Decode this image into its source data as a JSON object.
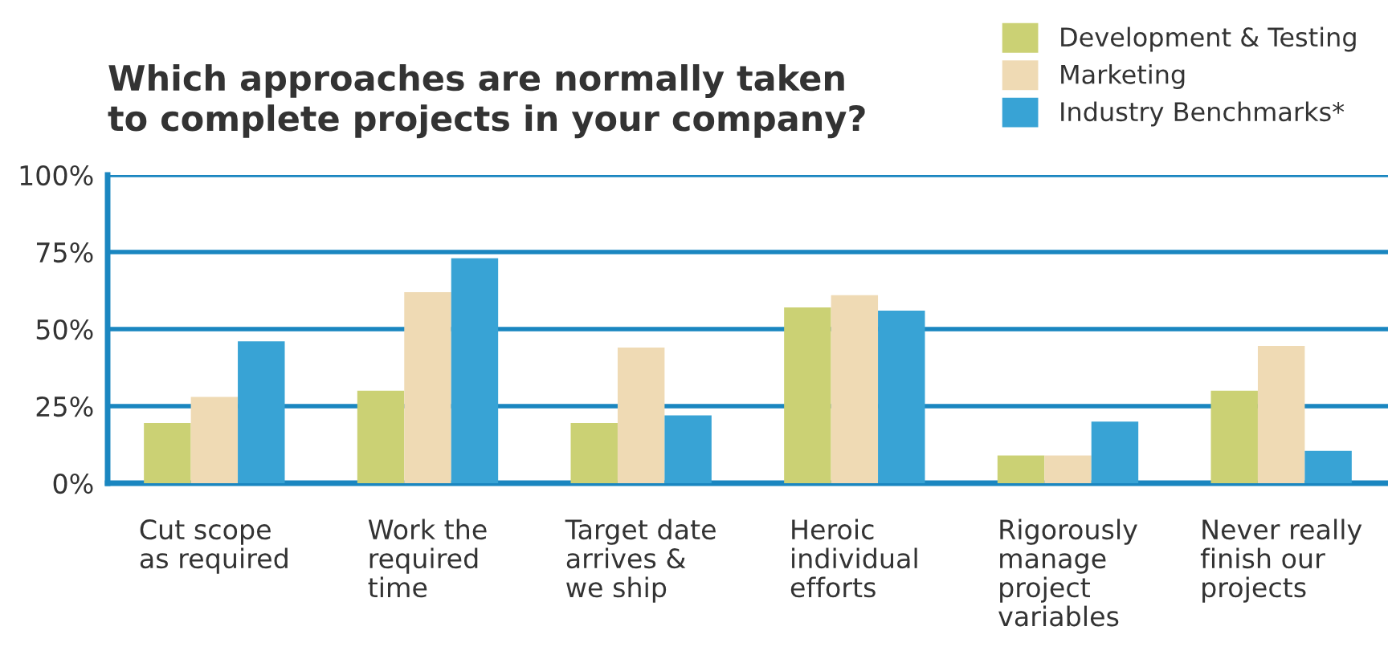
{
  "chart_data": {
    "type": "bar",
    "title": "Which approaches are normally taken\nto complete projects in your company?",
    "categories": [
      "Cut scope\nas required",
      "Work the\nrequired\ntime",
      "Target date\narrives &\nwe ship",
      "Heroic\nindividual\nefforts",
      "Rigorously\nmanage\nproject\nvariables",
      "Never really\nfinish our\nprojects"
    ],
    "series": [
      {
        "name": "Development & Testing",
        "color": "#cbd174",
        "values": [
          19.5,
          30,
          19.5,
          57,
          9,
          30
        ]
      },
      {
        "name": "Marketing",
        "color": "#efdab4",
        "values": [
          28,
          62,
          44,
          61,
          9,
          44.5
        ]
      },
      {
        "name": "Industry Benchmarks*",
        "color": "#38a3d5",
        "values": [
          46,
          73,
          22,
          56,
          20,
          10.5
        ]
      }
    ],
    "ylim": [
      0,
      100
    ],
    "yticks": [
      {
        "value": 0,
        "label": "0%"
      },
      {
        "value": 25,
        "label": "25%"
      },
      {
        "value": 50,
        "label": "50%"
      },
      {
        "value": 75,
        "label": "75%"
      },
      {
        "value": 100,
        "label": "100%"
      }
    ],
    "grid": "y",
    "legend": "top right"
  }
}
